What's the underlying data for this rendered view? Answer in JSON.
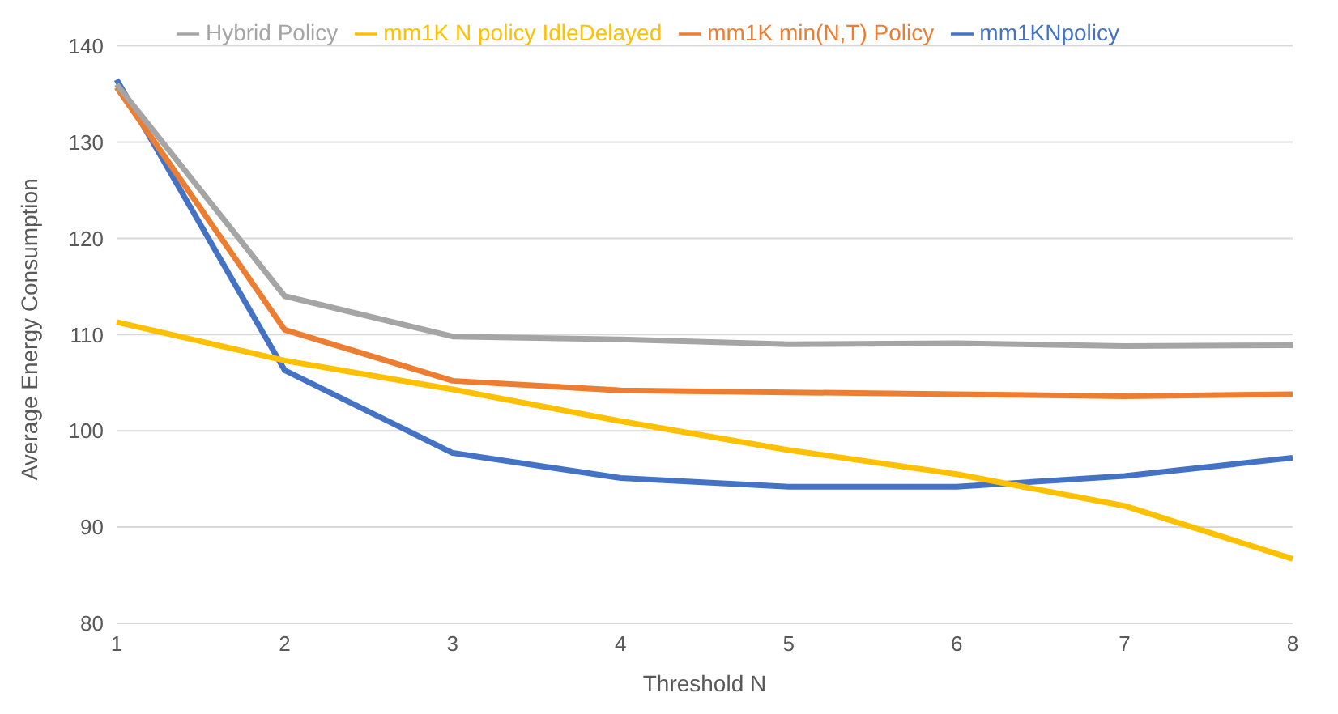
{
  "chart_data": {
    "type": "line",
    "categories": [
      "1",
      "2",
      "3",
      "4",
      "5",
      "6",
      "7",
      "8"
    ],
    "xlabel": "Threshold N",
    "ylabel": "Average Energy Consumption",
    "ylim": [
      80,
      140
    ],
    "yticks": [
      80,
      90,
      100,
      110,
      120,
      130,
      140
    ],
    "grid": "y",
    "legend": "top",
    "marker": "none",
    "line_style": "solid",
    "series": [
      {
        "name": "mm1KNpolicy",
        "color": "#4472c4",
        "values": [
          136.5,
          106.3,
          97.7,
          95.1,
          94.2,
          94.2,
          95.3,
          97.2
        ]
      },
      {
        "name": "mm1K min(N,T) Policy",
        "color": "#ed7d31",
        "values": [
          135.7,
          110.5,
          105.2,
          104.2,
          104.0,
          103.8,
          103.6,
          103.8
        ]
      },
      {
        "name": "Hybrid Policy",
        "color": "#a5a5a5",
        "values": [
          136.0,
          114.0,
          109.8,
          109.5,
          109.0,
          109.1,
          108.8,
          108.9
        ]
      },
      {
        "name": "mm1K N policy IdleDelayed",
        "color": "#ffc000",
        "values": [
          111.3,
          107.3,
          104.3,
          101.0,
          98.0,
          95.5,
          92.2,
          86.7
        ]
      }
    ]
  }
}
